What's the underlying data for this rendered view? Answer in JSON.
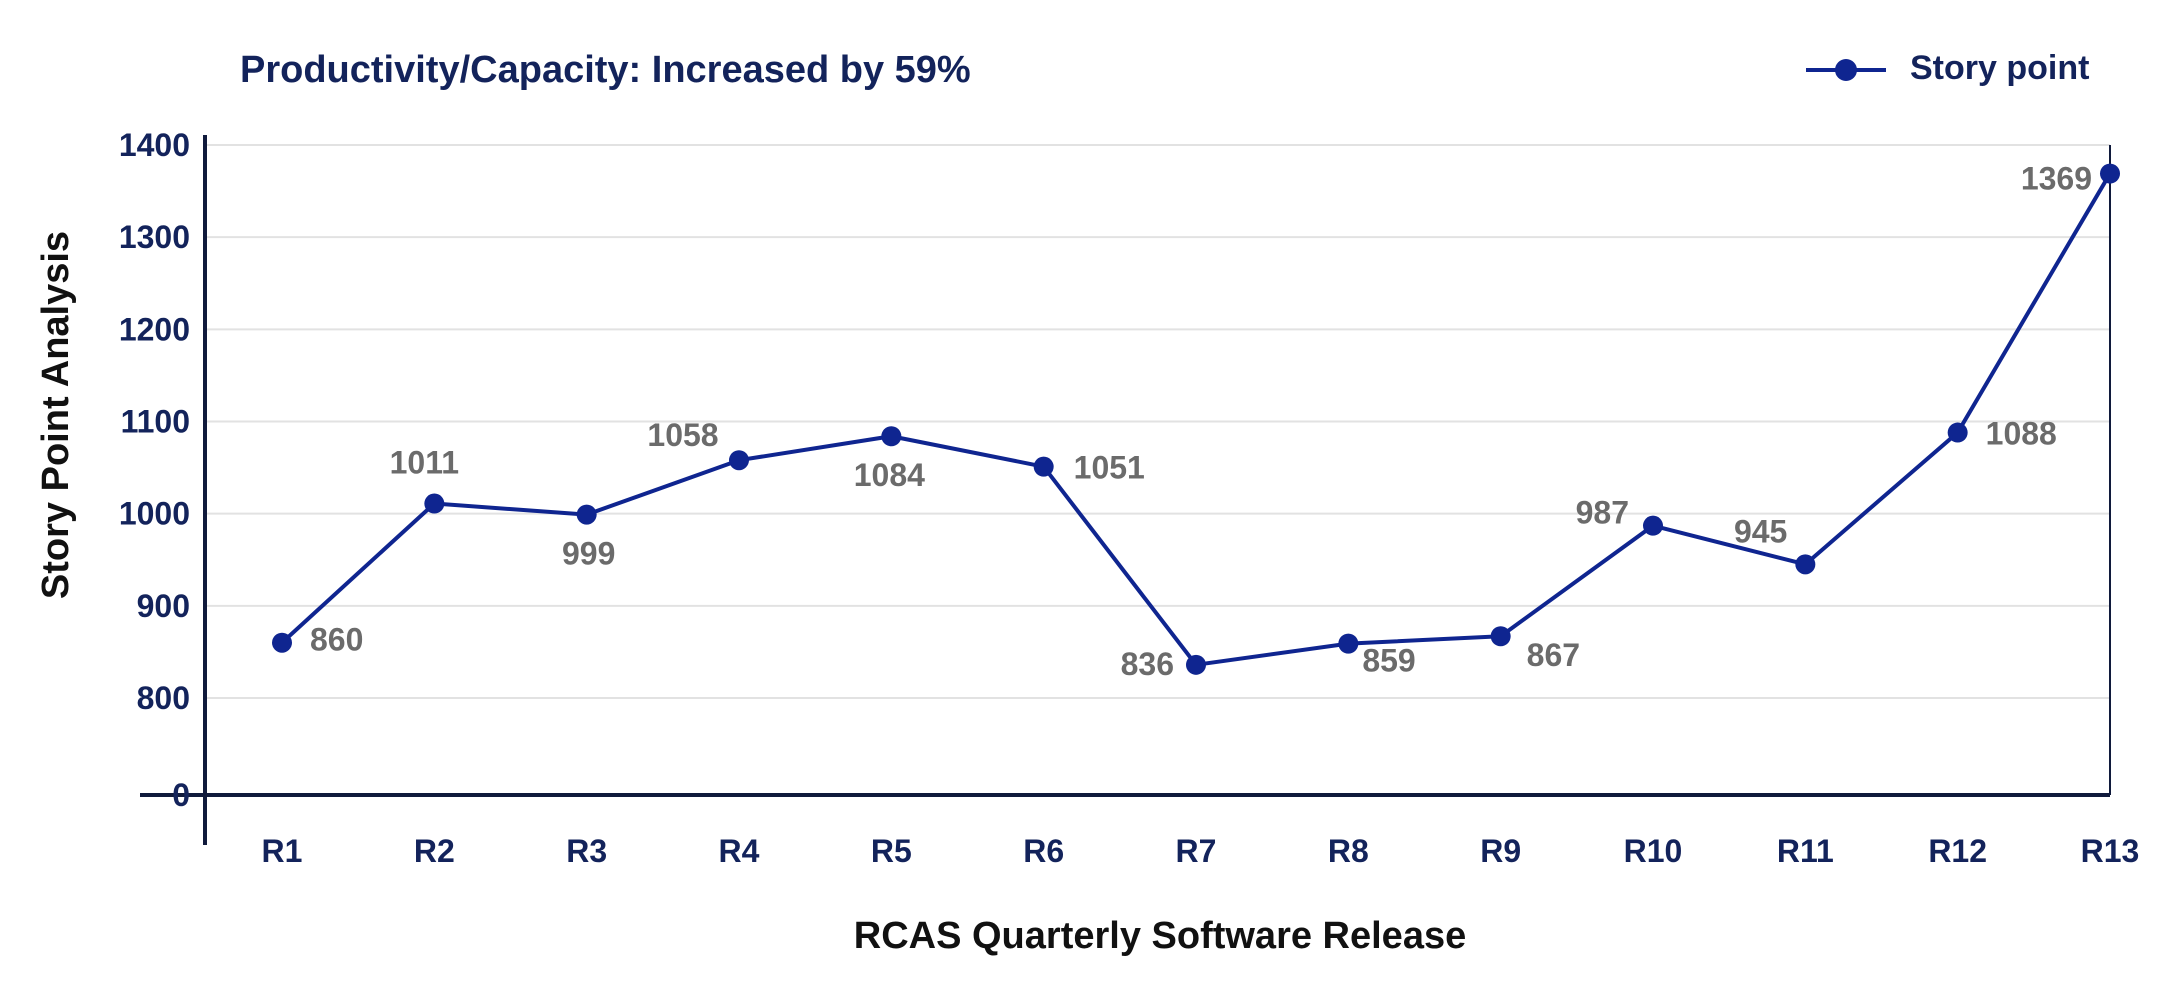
{
  "colors": {
    "series": "#0f2590",
    "title": "#13235b",
    "data_label": "#6b6b6b",
    "axis": "#101a3c",
    "grid": "#e2e2e2"
  },
  "chart_data": {
    "type": "line",
    "title": "Productivity/Capacity: Increased by 59%",
    "xlabel": "RCAS Quarterly Software Release",
    "ylabel": "Story Point Analysis",
    "categories": [
      "R1",
      "R2",
      "R3",
      "R4",
      "R5",
      "R6",
      "R7",
      "R8",
      "R9",
      "R10",
      "R11",
      "R12",
      "R13"
    ],
    "series": [
      {
        "name": "Story point",
        "values": [
          860,
          1011,
          999,
          1058,
          1084,
          1051,
          836,
          859,
          867,
          987,
          945,
          1088,
          1369
        ]
      }
    ],
    "data_labels": [
      "860",
      "1011",
      "999",
      "1058",
      "1084",
      "1051",
      "836",
      "859",
      "867",
      "987",
      "945",
      "1088",
      "1369"
    ],
    "y_ticks": [
      "0",
      "800",
      "900",
      "1000",
      "1100",
      "1200",
      "1300",
      "1400"
    ],
    "y_tick_values": [
      0,
      800,
      900,
      1000,
      1100,
      1200,
      1300,
      1400
    ],
    "ylim": [
      0,
      1400
    ],
    "y_axis_break": true,
    "legend": {
      "position": "top-right",
      "entries": [
        "Story point"
      ]
    },
    "grid": true
  }
}
